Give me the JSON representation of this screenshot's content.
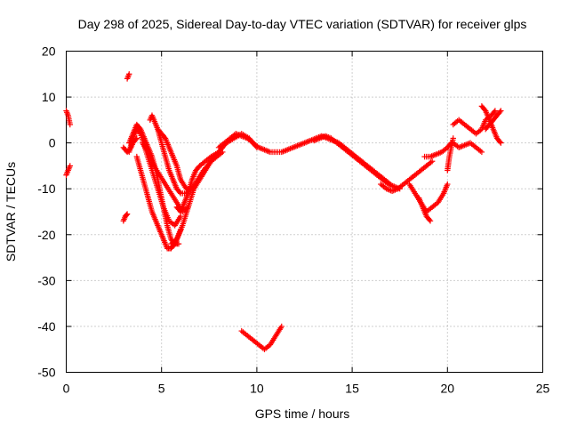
{
  "chart_data": {
    "type": "scatter",
    "title": "Day 298 of 2025, Sidereal Day-to-day VTEC variation (SDTVAR) for receiver glps",
    "xlabel": "GPS time / hours",
    "ylabel": "SDTVAR / TECUs",
    "xlim": [
      0,
      25
    ],
    "ylim": [
      -50,
      20
    ],
    "x_ticks": [
      0,
      5,
      10,
      15,
      20,
      25
    ],
    "y_ticks": [
      20,
      10,
      0,
      -10,
      -20,
      -30,
      -40,
      -50
    ],
    "x_tick_labels": [
      "0",
      "5",
      "10",
      "15",
      "20",
      "25"
    ],
    "y_tick_labels": [
      "20",
      "10",
      "0",
      "-10",
      "-20",
      "-30",
      "-40",
      "-50"
    ],
    "grid": true,
    "marker": "+",
    "marker_color": "#ff0000",
    "series": [
      {
        "name": "seg-00",
        "x": [
          0.0,
          0.1,
          0.2
        ],
        "y": [
          7,
          6,
          4
        ]
      },
      {
        "name": "seg-01",
        "x": [
          0.0,
          0.1,
          0.2
        ],
        "y": [
          -7,
          -6,
          -5
        ]
      },
      {
        "name": "seg-02",
        "x": [
          3.0,
          3.1,
          3.2
        ],
        "y": [
          -17,
          -16,
          -15.5
        ]
      },
      {
        "name": "seg-03",
        "x": [
          3.2,
          3.3
        ],
        "y": [
          14,
          15
        ]
      },
      {
        "name": "seg-04",
        "x": [
          3.0,
          3.2,
          3.4,
          3.5,
          3.7
        ],
        "y": [
          -1,
          -2,
          -1,
          0,
          1
        ]
      },
      {
        "name": "seg-05",
        "x": [
          3.3,
          3.5,
          3.7,
          3.9,
          4.1,
          4.3,
          4.5,
          4.7,
          4.9,
          5.1,
          5.3,
          5.5,
          5.7,
          5.9
        ],
        "y": [
          0,
          2,
          4,
          3,
          1,
          -1,
          -3,
          -6,
          -10,
          -14,
          -18,
          -21,
          -22,
          -22
        ]
      },
      {
        "name": "seg-06",
        "x": [
          3.3,
          3.5,
          3.7,
          3.9,
          4.2,
          4.5,
          4.8,
          5.1,
          5.4,
          5.7,
          6.0
        ],
        "y": [
          -2,
          1,
          3,
          2,
          -2,
          -6,
          -10,
          -14,
          -17,
          -18,
          -16
        ]
      },
      {
        "name": "seg-07",
        "x": [
          3.7,
          3.9,
          4.1,
          4.3,
          4.5,
          4.7,
          4.9,
          5.1,
          5.3,
          5.5,
          5.7,
          6.0
        ],
        "y": [
          -3,
          -6,
          -9,
          -12,
          -15,
          -17,
          -19,
          -21,
          -23,
          -23,
          -22,
          -19
        ]
      },
      {
        "name": "seg-08",
        "x": [
          4.0,
          4.3,
          4.6,
          4.9,
          5.2,
          5.5,
          5.8,
          6.1,
          6.4
        ],
        "y": [
          0,
          -2,
          -5,
          -7,
          -9,
          -11,
          -13,
          -15,
          -14
        ]
      },
      {
        "name": "seg-09",
        "x": [
          4.4,
          4.5,
          4.6,
          4.8,
          5.0,
          5.2,
          5.4,
          5.6,
          5.8,
          6.0,
          6.3,
          6.5
        ],
        "y": [
          5,
          6,
          5,
          3,
          0,
          -3,
          -6,
          -8,
          -10,
          -11,
          -11,
          -10
        ]
      },
      {
        "name": "seg-10",
        "x": [
          4.8,
          5.0,
          5.2,
          5.4,
          5.6,
          5.8,
          6.0,
          6.3,
          6.6,
          6.9,
          7.2,
          7.6,
          8.0,
          8.4,
          8.8,
          9.2,
          9.6,
          10.0
        ],
        "y": [
          3,
          2,
          1,
          -1,
          -3,
          -5,
          -8,
          -10,
          -10,
          -8,
          -6,
          -4,
          -2,
          0,
          1,
          2,
          1,
          -1
        ]
      },
      {
        "name": "seg-11",
        "x": [
          5.8,
          6.0,
          6.2,
          6.4,
          6.6,
          6.8,
          7.0,
          7.3,
          7.6,
          8.0
        ],
        "y": [
          -14,
          -15,
          -13,
          -11,
          -8,
          -6,
          -5,
          -4,
          -3,
          -2
        ]
      },
      {
        "name": "seg-12",
        "x": [
          5.5,
          5.8,
          6.1,
          6.4,
          6.7,
          7.0,
          7.3,
          7.6,
          7.9,
          8.2
        ],
        "y": [
          -22,
          -21,
          -18,
          -14,
          -10,
          -8,
          -6,
          -4,
          -3,
          -2
        ]
      },
      {
        "name": "seg-13",
        "x": [
          8.0,
          8.3,
          8.6,
          8.9,
          9.2,
          9.5,
          9.8,
          10.1,
          10.4,
          10.7,
          11.0,
          11.3,
          11.6,
          11.9,
          12.2,
          12.5,
          12.8,
          13.1,
          13.4,
          13.7,
          14.0,
          14.3,
          14.6,
          14.9,
          15.2,
          15.5,
          15.8,
          16.1,
          16.4,
          16.7,
          17.0
        ],
        "y": [
          -1,
          0,
          1,
          2,
          1.5,
          1,
          0,
          -1,
          -1.5,
          -2,
          -2,
          -2,
          -1.5,
          -1,
          -0.5,
          0,
          0.5,
          1,
          1.5,
          1,
          0.5,
          0,
          -1,
          -2,
          -3,
          -4,
          -5,
          -6,
          -7,
          -8,
          -9
        ]
      },
      {
        "name": "seg-14",
        "x": [
          13.0,
          13.3,
          13.6,
          13.9,
          14.2,
          14.5,
          14.8,
          15.1,
          15.4,
          15.7,
          16.0,
          16.3,
          16.6,
          16.9,
          17.2,
          17.5
        ],
        "y": [
          0.5,
          1,
          1.5,
          1,
          0,
          -1,
          -2,
          -3,
          -4,
          -5,
          -6,
          -7,
          -8,
          -9,
          -9.5,
          -10
        ]
      },
      {
        "name": "seg-15",
        "x": [
          16.5,
          16.8,
          17.1,
          17.4,
          17.7,
          18.0,
          18.3,
          18.6,
          18.9,
          19.2
        ],
        "y": [
          -9,
          -10,
          -10.5,
          -10,
          -9,
          -8,
          -7,
          -6,
          -5,
          -4
        ]
      },
      {
        "name": "seg-16",
        "x": [
          18.0,
          18.3,
          18.6,
          18.9,
          19.2,
          19.5,
          19.8,
          20.0
        ],
        "y": [
          -9,
          -11,
          -13,
          -15,
          -14,
          -13,
          -11,
          -9
        ]
      },
      {
        "name": "seg-17",
        "x": [
          18.5,
          18.7,
          18.9,
          19.1
        ],
        "y": [
          -12,
          -14,
          -16,
          -17
        ]
      },
      {
        "name": "seg-18",
        "x": [
          18.8,
          19.1,
          19.4,
          19.7,
          20.0,
          20.2
        ],
        "y": [
          -3,
          -3,
          -2.5,
          -2,
          -1,
          0
        ]
      },
      {
        "name": "seg-19",
        "x": [
          20.0,
          20.1,
          20.2,
          20.3
        ],
        "y": [
          -6,
          -3,
          -1,
          1
        ]
      },
      {
        "name": "seg-20",
        "x": [
          20.3,
          20.6,
          20.9,
          21.2,
          21.5,
          21.8,
          22.0,
          22.3,
          22.5
        ],
        "y": [
          4,
          5,
          4,
          3,
          2,
          3,
          5,
          6,
          7
        ]
      },
      {
        "name": "seg-21",
        "x": [
          21.8,
          22.0,
          22.2,
          22.4,
          22.6,
          22.8
        ],
        "y": [
          8,
          7,
          5,
          3,
          1,
          0
        ]
      },
      {
        "name": "seg-22",
        "x": [
          22.0,
          22.2,
          22.4,
          22.6,
          22.8
        ],
        "y": [
          3,
          4,
          5,
          6,
          7
        ]
      },
      {
        "name": "seg-23",
        "x": [
          20.3,
          20.6,
          20.9,
          21.2,
          21.5,
          21.8
        ],
        "y": [
          0,
          -1,
          -0.5,
          0,
          -1,
          -2
        ]
      },
      {
        "name": "seg-24",
        "x": [
          9.2,
          9.5,
          9.8,
          10.1,
          10.4,
          10.7,
          11.0,
          11.3
        ],
        "y": [
          -41,
          -42,
          -43,
          -44,
          -45,
          -44,
          -42,
          -40
        ]
      }
    ]
  }
}
